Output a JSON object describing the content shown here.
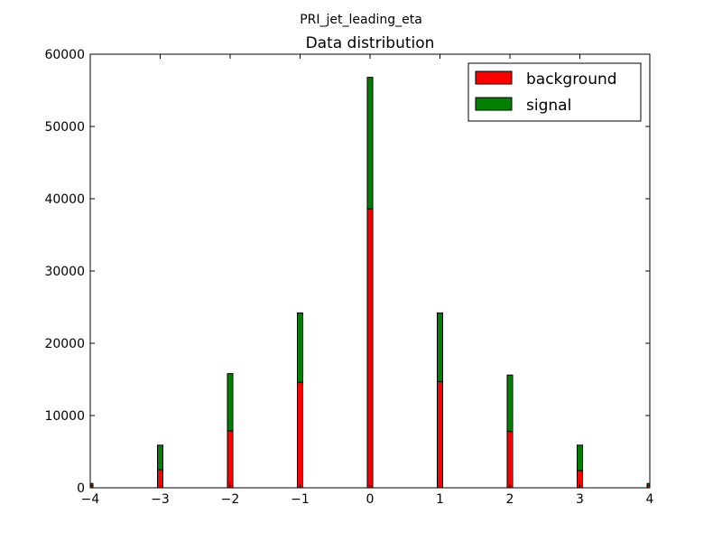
{
  "figure": {
    "suptitle": "PRI_jet_leading_eta"
  },
  "chart_data": {
    "type": "bar",
    "stacked": true,
    "title": "Data distribution",
    "xlabel": "",
    "ylabel": "",
    "xlim": [
      -4,
      4
    ],
    "ylim": [
      0,
      60000
    ],
    "x_ticks": [
      "−4",
      "−3",
      "−2",
      "−1",
      "0",
      "1",
      "2",
      "3",
      "4"
    ],
    "y_ticks": [
      "0",
      "10000",
      "20000",
      "30000",
      "40000",
      "50000",
      "60000"
    ],
    "x": [
      -4,
      -3,
      -2,
      -1,
      0,
      1,
      2,
      3,
      4
    ],
    "series": [
      {
        "name": "background",
        "color": "#ff0000",
        "values": [
          300,
          2500,
          7900,
          14600,
          38600,
          14700,
          7800,
          2400,
          300
        ]
      },
      {
        "name": "signal",
        "color": "#008000",
        "values": [
          300,
          3400,
          7900,
          9600,
          18200,
          9500,
          7800,
          3500,
          300
        ]
      }
    ],
    "grid": false,
    "legend": "top-right"
  }
}
